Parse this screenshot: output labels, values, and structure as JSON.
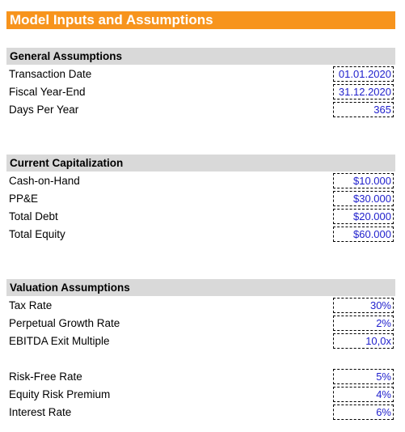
{
  "title": "Model Inputs and Assumptions",
  "sections": [
    {
      "header": "General Assumptions",
      "rows": [
        {
          "label": "Transaction Date",
          "value": "01.01.2020"
        },
        {
          "label": "Fiscal Year-End",
          "value": "31.12.2020"
        },
        {
          "label": "Days Per Year",
          "value": "365"
        }
      ]
    },
    {
      "header": "Current Capitalization",
      "rows": [
        {
          "label": "Cash-on-Hand",
          "value": "$10.000"
        },
        {
          "label": "PP&E",
          "value": "$30.000"
        },
        {
          "label": "Total Debt",
          "value": "$20.000"
        },
        {
          "label": "Total Equity",
          "value": "$60.000"
        }
      ]
    },
    {
      "header": "Valuation Assumptions",
      "rows": [
        {
          "label": "Tax Rate",
          "value": "30%"
        },
        {
          "label": "Perpetual Growth Rate",
          "value": "2%"
        },
        {
          "label": "EBITDA Exit Multiple",
          "value": "10,0x"
        }
      ],
      "rows2": [
        {
          "label": "Risk-Free Rate",
          "value": "5%"
        },
        {
          "label": "Equity Risk Premium",
          "value": "4%"
        },
        {
          "label": "Interest Rate",
          "value": "6%"
        }
      ]
    }
  ]
}
